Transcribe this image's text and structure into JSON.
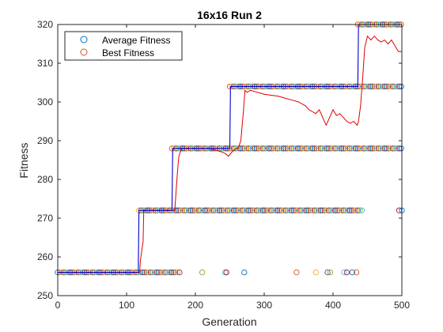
{
  "chart_data": {
    "type": "line",
    "title": "16x16 Run 2",
    "xlabel": "Generation",
    "ylabel": "Fitness",
    "xlim": [
      0,
      500
    ],
    "ylim": [
      250,
      320
    ],
    "xticks": [
      0,
      100,
      200,
      300,
      400,
      500
    ],
    "yticks": [
      250,
      260,
      270,
      280,
      290,
      300,
      310,
      320
    ],
    "grid": false,
    "legend_location": "top-left",
    "legend": [
      {
        "label": "Average Fitness",
        "color": "#0072BD",
        "marker": "circle"
      },
      {
        "label": "Best Fitness",
        "color": "#D95319",
        "marker": "circle"
      }
    ],
    "best_fitness_line": {
      "color": "#0000CC",
      "x": [
        0,
        117,
        118,
        166,
        167,
        250,
        251,
        436,
        437,
        500
      ],
      "y": [
        256,
        256,
        272,
        272,
        288,
        288,
        304,
        304,
        320,
        320
      ]
    },
    "average_fitness_line": {
      "color": "#DD0000",
      "x": [
        0,
        119,
        120,
        124,
        125,
        170,
        172,
        174,
        176,
        180,
        200,
        220,
        240,
        245,
        248,
        255,
        260,
        262,
        266,
        270,
        272,
        275,
        280,
        300,
        320,
        330,
        340,
        350,
        355,
        360,
        365,
        370,
        375,
        380,
        385,
        390,
        395,
        400,
        405,
        410,
        415,
        420,
        425,
        430,
        435,
        437,
        440,
        443,
        446,
        450,
        455,
        460,
        465,
        470,
        475,
        480,
        485,
        490,
        495,
        500
      ],
      "y": [
        256,
        256,
        259,
        264,
        272,
        272,
        277,
        282,
        286,
        288,
        288,
        288,
        287,
        286.5,
        286,
        287.5,
        288,
        288,
        290,
        298,
        303,
        302.5,
        303,
        302,
        301.5,
        301,
        300.5,
        300,
        299.5,
        299,
        298,
        297.5,
        297,
        298,
        296,
        294,
        296,
        298,
        296.5,
        297,
        296,
        295,
        294.5,
        295,
        294,
        295,
        299,
        306,
        314,
        317,
        316,
        317,
        316,
        315.5,
        316,
        315,
        316,
        314.5,
        313,
        313
      ]
    },
    "population_markers": [
      {
        "level": 256,
        "dense_to": 178,
        "sparse_x": [
          210,
          243,
          245,
          271,
          347,
          375,
          392,
          396,
          416,
          420,
          428,
          434
        ]
      },
      {
        "level": 272,
        "dense_from": 118,
        "dense_to": 444,
        "sparse_x": [
          496,
          500
        ]
      },
      {
        "level": 288,
        "dense_from": 166,
        "dense_to": 500,
        "sparse_x": []
      },
      {
        "level": 304,
        "dense_from": 250,
        "dense_to": 500,
        "sparse_x": []
      },
      {
        "level": 320,
        "dense_from": 436,
        "dense_to": 500,
        "sparse_x": []
      }
    ],
    "marker_colors": [
      "#0072BD",
      "#D95319",
      "#EDB120",
      "#7E2F8E",
      "#77AC30",
      "#4DBEEE",
      "#A2142F"
    ]
  }
}
